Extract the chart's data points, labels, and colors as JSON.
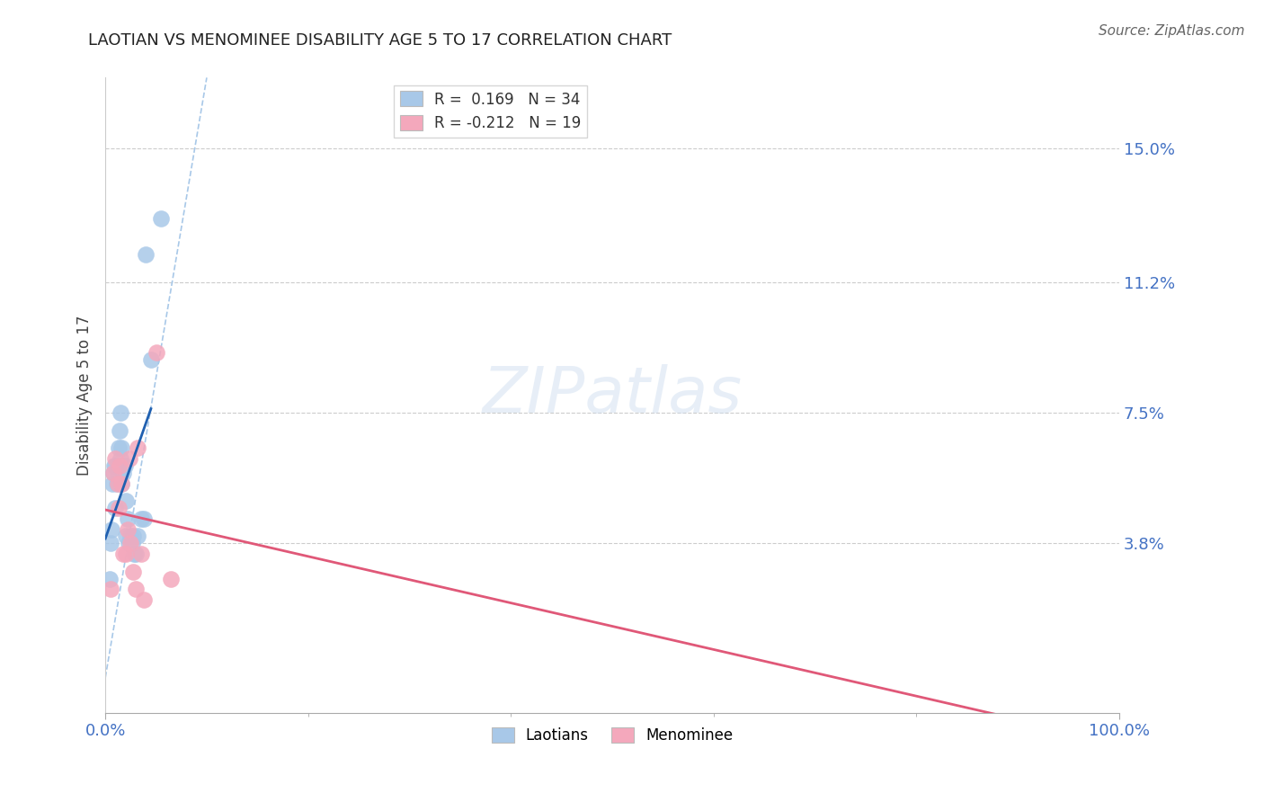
{
  "title": "LAOTIAN VS MENOMINEE DISABILITY AGE 5 TO 17 CORRELATION CHART",
  "source": "Source: ZipAtlas.com",
  "ylabel": "Disability Age 5 to 17",
  "y_tick_labels": [
    "3.8%",
    "7.5%",
    "11.2%",
    "15.0%"
  ],
  "y_tick_values": [
    3.8,
    7.5,
    11.2,
    15.0
  ],
  "xlim": [
    0.0,
    100.0
  ],
  "ylim": [
    -1.0,
    17.0
  ],
  "laotian_R": 0.169,
  "laotian_N": 34,
  "menominee_R": -0.212,
  "menominee_N": 19,
  "laotian_color": "#a8c8e8",
  "menominee_color": "#f4a8bc",
  "laotian_line_color": "#2060b0",
  "menominee_line_color": "#e05878",
  "dashed_line_color": "#a8c8e8",
  "background_color": "#ffffff",
  "grid_color": "#cccccc",
  "laotian_x": [
    0.4,
    0.5,
    0.6,
    0.7,
    0.8,
    0.9,
    1.0,
    1.0,
    1.1,
    1.2,
    1.3,
    1.4,
    1.5,
    1.5,
    1.6,
    1.6,
    1.7,
    1.8,
    1.9,
    2.0,
    2.0,
    2.2,
    2.3,
    2.5,
    2.6,
    2.7,
    2.8,
    3.0,
    3.2,
    3.5,
    3.8,
    4.0,
    4.5,
    5.5
  ],
  "laotian_y": [
    2.8,
    3.8,
    4.2,
    5.5,
    5.8,
    6.0,
    4.8,
    6.0,
    5.5,
    5.8,
    6.5,
    7.0,
    7.5,
    6.2,
    6.5,
    5.5,
    6.0,
    5.8,
    6.0,
    5.0,
    4.0,
    4.5,
    3.8,
    4.0,
    3.8,
    4.0,
    3.5,
    3.5,
    4.0,
    4.5,
    4.5,
    12.0,
    9.0,
    13.0
  ],
  "menominee_x": [
    0.5,
    0.8,
    1.0,
    1.2,
    1.3,
    1.4,
    1.6,
    1.8,
    2.0,
    2.2,
    2.4,
    2.5,
    2.7,
    3.0,
    3.2,
    3.5,
    3.8,
    5.0,
    6.5
  ],
  "menominee_y": [
    2.5,
    5.8,
    6.2,
    5.5,
    4.8,
    6.0,
    5.5,
    3.5,
    3.5,
    4.2,
    6.2,
    3.8,
    3.0,
    2.5,
    6.5,
    3.5,
    2.2,
    9.2,
    2.8
  ]
}
